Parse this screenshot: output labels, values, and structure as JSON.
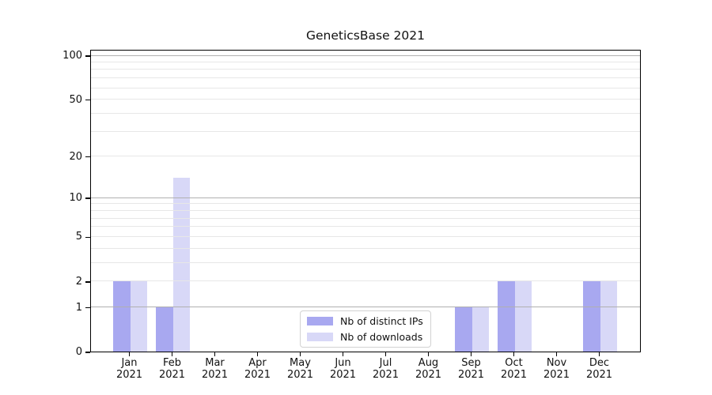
{
  "chart_data": {
    "type": "bar",
    "title": "GeneticsBase 2021",
    "categories": [
      "Jan",
      "Feb",
      "Mar",
      "Apr",
      "May",
      "Jun",
      "Jul",
      "Aug",
      "Sep",
      "Oct",
      "Nov",
      "Dec"
    ],
    "category_year_label": "2021",
    "series": [
      {
        "name": "Nb of distinct IPs",
        "color": "#a8a8f0",
        "values": [
          2,
          1,
          0,
          0,
          0,
          0,
          0,
          0,
          1,
          2,
          0,
          2
        ]
      },
      {
        "name": "Nb of downloads",
        "color": "#d8d8f7",
        "values": [
          2,
          14,
          0,
          0,
          0,
          0,
          0,
          0,
          1,
          2,
          0,
          2
        ]
      }
    ],
    "y_scale": "log1p",
    "ylim": [
      0,
      110
    ],
    "y_ticks": [
      0,
      1,
      2,
      5,
      10,
      20,
      50,
      100
    ],
    "y_major_gridlines": [
      1,
      10,
      100
    ],
    "y_minor_gridlines": [
      2,
      3,
      4,
      5,
      6,
      7,
      8,
      9,
      20,
      30,
      40,
      50,
      60,
      70,
      80,
      90
    ],
    "grid": true,
    "legend_position": "lower center inside"
  },
  "colors": {
    "major_grid": "#b0b0b0",
    "minor_grid": "#e7e7e7",
    "axis": "#000000",
    "text": "#111111",
    "legend_border": "#d2d2d2",
    "background": "#ffffff"
  }
}
